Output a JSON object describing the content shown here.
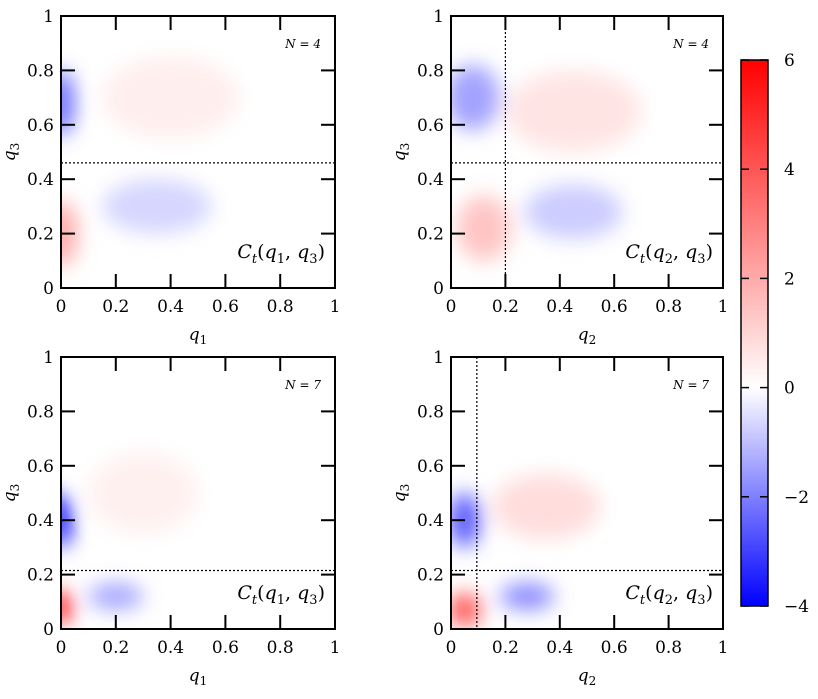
{
  "chart_data": [
    {
      "type": "heatmap",
      "panel": "top-left",
      "xlabel": "q1",
      "ylabel": "q3",
      "xlim": [
        0,
        1
      ],
      "ylim": [
        0,
        1
      ],
      "xticks": [
        "0",
        "0.2",
        "0.4",
        "0.6",
        "0.8",
        "1"
      ],
      "yticks": [
        "0",
        "0.2",
        "0.4",
        "0.6",
        "0.8",
        "1"
      ],
      "annotation": "N = 4",
      "label": "Ct(q1, q3)",
      "hline": 0.46,
      "vline": null,
      "features": [
        {
          "x": 0.0,
          "y": 0.68,
          "value": -2.5,
          "sx": 0.05,
          "sy": 0.12
        },
        {
          "x": 0.0,
          "y": 0.2,
          "value": 2.2,
          "sx": 0.06,
          "sy": 0.12
        },
        {
          "x": 0.35,
          "y": 0.3,
          "value": -0.7,
          "sx": 0.2,
          "sy": 0.1
        },
        {
          "x": 0.4,
          "y": 0.7,
          "value": 0.45,
          "sx": 0.25,
          "sy": 0.15
        }
      ]
    },
    {
      "type": "heatmap",
      "panel": "top-right",
      "xlabel": "q2",
      "ylabel": "q3",
      "xlim": [
        0,
        1
      ],
      "ylim": [
        0,
        1
      ],
      "xticks": [
        "0",
        "0.2",
        "0.4",
        "0.6",
        "0.8",
        "1"
      ],
      "yticks": [
        "0",
        "0.2",
        "0.4",
        "0.6",
        "0.8",
        "1"
      ],
      "annotation": "N = 4",
      "label": "Ct(q2, q3)",
      "hline": 0.46,
      "vline": 0.2,
      "features": [
        {
          "x": 0.08,
          "y": 0.7,
          "value": -1.6,
          "sx": 0.1,
          "sy": 0.12
        },
        {
          "x": 0.12,
          "y": 0.22,
          "value": 1.5,
          "sx": 0.1,
          "sy": 0.12
        },
        {
          "x": 0.45,
          "y": 0.28,
          "value": -0.9,
          "sx": 0.18,
          "sy": 0.1
        },
        {
          "x": 0.45,
          "y": 0.65,
          "value": 0.7,
          "sx": 0.25,
          "sy": 0.15
        }
      ]
    },
    {
      "type": "heatmap",
      "panel": "bottom-left",
      "xlabel": "q1",
      "ylabel": "q3",
      "xlim": [
        0,
        1
      ],
      "ylim": [
        0,
        1
      ],
      "xticks": [
        "0",
        "0.2",
        "0.4",
        "0.6",
        "0.8",
        "1"
      ],
      "yticks": [
        "0",
        "0.2",
        "0.4",
        "0.6",
        "0.8",
        "1"
      ],
      "annotation": "N = 7",
      "label": "Ct(q1, q3)",
      "hline": 0.215,
      "vline": null,
      "features": [
        {
          "x": 0.0,
          "y": 0.4,
          "value": -4.0,
          "sx": 0.04,
          "sy": 0.1
        },
        {
          "x": 0.0,
          "y": 0.08,
          "value": 6.0,
          "sx": 0.04,
          "sy": 0.06
        },
        {
          "x": 0.2,
          "y": 0.12,
          "value": -1.5,
          "sx": 0.1,
          "sy": 0.05
        },
        {
          "x": 0.3,
          "y": 0.5,
          "value": 0.4,
          "sx": 0.2,
          "sy": 0.15
        }
      ]
    },
    {
      "type": "heatmap",
      "panel": "bottom-right",
      "xlabel": "q2",
      "ylabel": "q3",
      "xlim": [
        0,
        1
      ],
      "ylim": [
        0,
        1
      ],
      "xticks": [
        "0",
        "0.2",
        "0.4",
        "0.6",
        "0.8",
        "1"
      ],
      "yticks": [
        "0",
        "0.2",
        "0.4",
        "0.6",
        "0.8",
        "1"
      ],
      "annotation": "N = 7",
      "label": "Ct(q2, q3)",
      "hline": 0.215,
      "vline": 0.095,
      "features": [
        {
          "x": 0.05,
          "y": 0.4,
          "value": -2.8,
          "sx": 0.06,
          "sy": 0.1
        },
        {
          "x": 0.05,
          "y": 0.07,
          "value": 4.5,
          "sx": 0.06,
          "sy": 0.06
        },
        {
          "x": 0.28,
          "y": 0.12,
          "value": -2.0,
          "sx": 0.1,
          "sy": 0.05
        },
        {
          "x": 0.35,
          "y": 0.45,
          "value": 0.9,
          "sx": 0.2,
          "sy": 0.12
        }
      ]
    }
  ],
  "colorbar": {
    "min": -4,
    "max": 6,
    "ticks": [
      "6",
      "4",
      "2",
      "0",
      "−2",
      "−4"
    ],
    "colors": {
      "low": "#0000ff",
      "mid": "#ffffff",
      "high": "#ff0000"
    }
  }
}
